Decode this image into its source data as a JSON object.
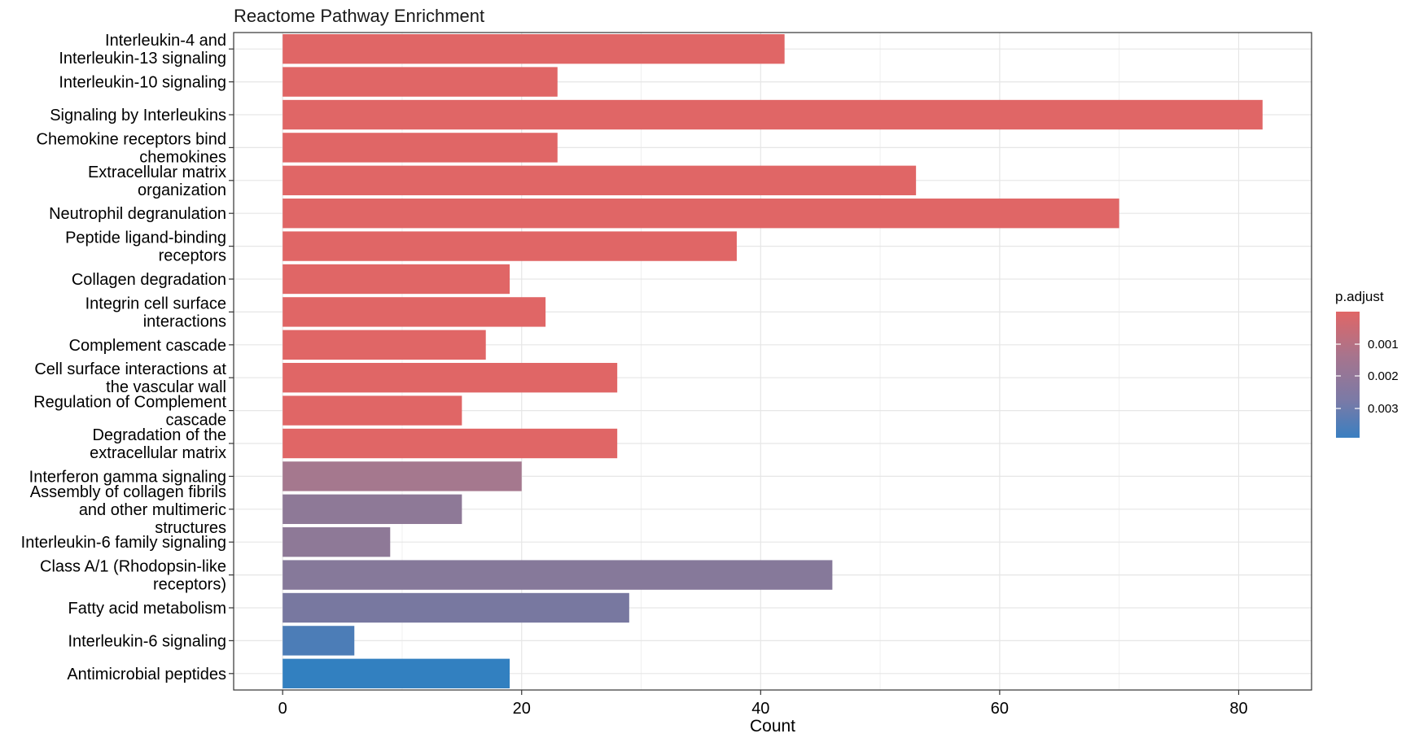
{
  "chart_data": {
    "type": "bar",
    "orientation": "horizontal",
    "title": "Reactome Pathway Enrichment",
    "xlabel": "Count",
    "ylabel": "",
    "xlim": [
      -4.1,
      86.1
    ],
    "xticks": [
      0,
      20,
      40,
      60,
      80
    ],
    "grid": true,
    "categories": [
      "Interleukin-4 and Interleukin-13 signaling",
      "Interleukin-10 signaling",
      "Signaling by Interleukins",
      "Chemokine receptors bind chemokines",
      "Extracellular matrix organization",
      "Neutrophil degranulation",
      "Peptide ligand-binding receptors",
      "Collagen degradation",
      "Integrin cell surface interactions",
      "Complement cascade",
      "Cell surface interactions at the vascular wall",
      "Regulation of Complement cascade",
      "Degradation of the extracellular matrix",
      "Interferon gamma signaling",
      "Assembly of collagen fibrils and other multimeric structures",
      "Interleukin-6 family signaling",
      "Class A/1 (Rhodopsin-like receptors)",
      "Fatty acid metabolism",
      "Interleukin-6 signaling",
      "Antimicrobial peptides"
    ],
    "label_lines": [
      [
        "Interleukin-4 and",
        "Interleukin-13 signaling"
      ],
      [
        "Interleukin-10 signaling"
      ],
      [
        "Signaling by Interleukins"
      ],
      [
        "Chemokine receptors bind",
        "chemokines"
      ],
      [
        "Extracellular matrix",
        "organization"
      ],
      [
        "Neutrophil degranulation"
      ],
      [
        "Peptide ligand-binding",
        "receptors"
      ],
      [
        "Collagen degradation"
      ],
      [
        "Integrin cell surface",
        "interactions"
      ],
      [
        "Complement cascade"
      ],
      [
        "Cell surface interactions at",
        "the vascular wall"
      ],
      [
        "Regulation of Complement",
        "cascade"
      ],
      [
        "Degradation of the",
        "extracellular matrix"
      ],
      [
        "Interferon gamma signaling"
      ],
      [
        "Assembly of collagen fibrils",
        "and other multimeric",
        "structures"
      ],
      [
        "Interleukin-6 family signaling"
      ],
      [
        "Class A/1 (Rhodopsin-like",
        "receptors)"
      ],
      [
        "Fatty acid metabolism"
      ],
      [
        "Interleukin-6 signaling"
      ],
      [
        "Antimicrobial peptides"
      ]
    ],
    "values": [
      42,
      23,
      82,
      23,
      53,
      70,
      38,
      19,
      22,
      17,
      28,
      15,
      28,
      20,
      15,
      9,
      46,
      29,
      6,
      19
    ],
    "bar_colors": [
      "#E06666",
      "#E06666",
      "#E06666",
      "#E06666",
      "#E06666",
      "#E06666",
      "#E06666",
      "#E06666",
      "#E06666",
      "#E06666",
      "#E06666",
      "#E06666",
      "#E06666",
      "#A5788E",
      "#8E7997",
      "#8E7997",
      "#86799A",
      "#7878A0",
      "#4C7DB7",
      "#3280C0"
    ],
    "legend": {
      "title": "p.adjust",
      "position": "right",
      "gradient_colors": [
        "#E06666",
        "#A7748D",
        "#7B7AA6",
        "#3A7FC1"
      ],
      "labels": [
        "0.001",
        "0.002",
        "0.003"
      ]
    }
  }
}
